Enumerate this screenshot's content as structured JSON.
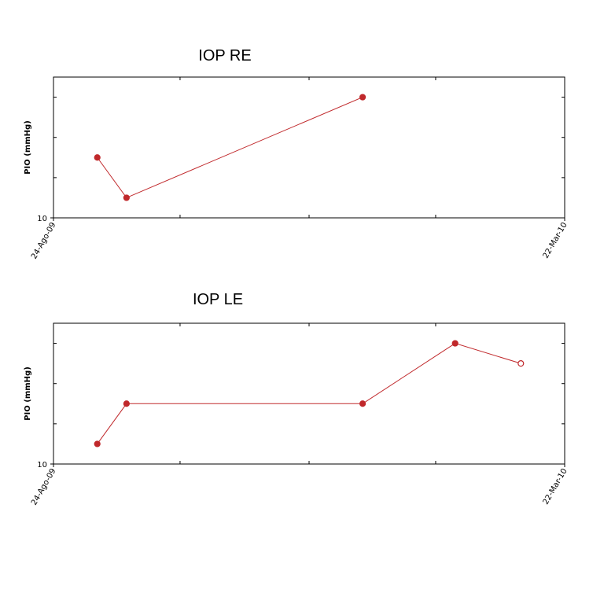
{
  "chart_data": [
    {
      "type": "line",
      "title": "IOP RE",
      "y_label": "PIO (mmHg)",
      "x": [
        "2009-09-11",
        "2009-09-23",
        "2009-12-29"
      ],
      "values": [
        13,
        11,
        16
      ],
      "color": "#c0282b",
      "xlim": [
        "2009-08-24",
        "2010-03-22"
      ],
      "xticks": [
        {
          "value": "2009-08-24",
          "label": "24-Ago-09"
        },
        {
          "value": "2010-03-22",
          "label": "22-Mar-10"
        }
      ],
      "minor_xticks": [
        "2009-10-15",
        "2009-12-07",
        "2010-01-28"
      ],
      "ylim": [
        10,
        17
      ],
      "yticks": [
        10
      ],
      "minor_yticks": [
        12,
        14,
        16
      ],
      "hollow_points": []
    },
    {
      "type": "line",
      "title": "IOP LE",
      "y_label": "PIO (mmHg)",
      "x": [
        "2009-09-11",
        "2009-09-23",
        "2009-12-29",
        "2010-02-05",
        "2010-03-04"
      ],
      "values": [
        11,
        13,
        13,
        16,
        15
      ],
      "color": "#c0282b",
      "xlim": [
        "2009-08-24",
        "2010-03-22"
      ],
      "xticks": [
        {
          "value": "2009-08-24",
          "label": "24-Ago-09"
        },
        {
          "value": "2010-03-22",
          "label": "22-Mar-10"
        }
      ],
      "minor_xticks": [
        "2009-10-15",
        "2009-12-07",
        "2010-01-28"
      ],
      "ylim": [
        10,
        17
      ],
      "yticks": [
        10
      ],
      "minor_yticks": [
        12,
        14,
        16
      ],
      "hollow_points": [
        4
      ]
    }
  ]
}
